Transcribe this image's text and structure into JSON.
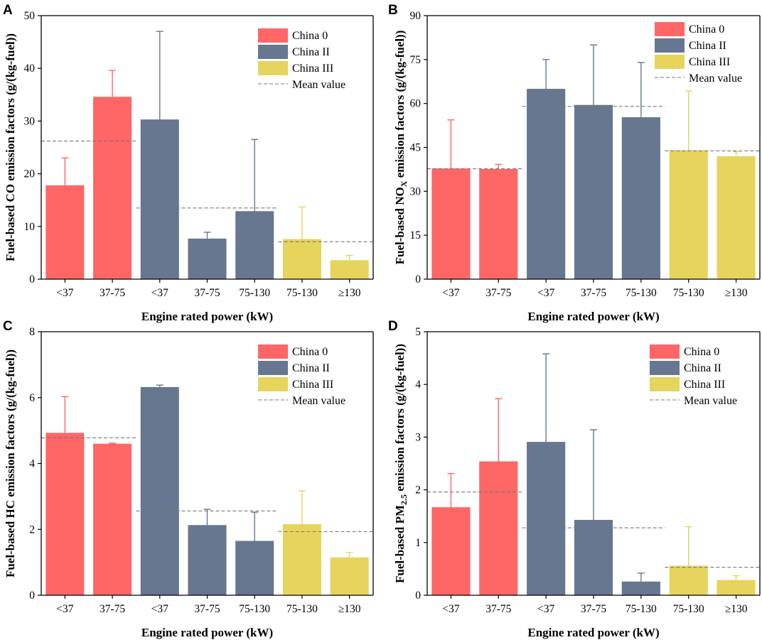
{
  "colors": {
    "china0": "#ff6666",
    "china2": "#66778f",
    "china3": "#e6d45c",
    "mean": "#777777",
    "axis": "#000000",
    "error_china0": "#ff6666",
    "error_china2": "#66778f",
    "error_china3": "#e6d45c"
  },
  "chart_data": [
    {
      "type": "bar",
      "panel": "A",
      "ylabel": "Fuel-based CO emission factors (g/(kg-fuel))",
      "xlabel": "Engine rated power (kW)",
      "ylim": [
        0,
        50
      ],
      "yticks": [
        "0",
        "10",
        "20",
        "30",
        "40",
        "50"
      ],
      "categories": [
        "<37",
        "37-75",
        "<37",
        "37-75",
        "75-130",
        "75-130",
        "≥130"
      ],
      "groups": [
        "China 0",
        "China 0",
        "China II",
        "China II",
        "China II",
        "China III",
        "China III"
      ],
      "values": [
        17.8,
        34.6,
        30.3,
        7.7,
        12.9,
        7.6,
        3.6
      ],
      "errors": [
        23.0,
        39.6,
        47.0,
        8.9,
        26.5,
        13.7,
        4.5
      ],
      "means": [
        {
          "group": "China 0",
          "value": 26.2
        },
        {
          "group": "China II",
          "value": 13.5
        },
        {
          "group": "China III",
          "value": 7.1
        }
      ],
      "legend": [
        "China 0",
        "China II",
        "China III",
        "Mean value"
      ]
    },
    {
      "type": "bar",
      "panel": "B",
      "ylabel": "Fuel-based NO",
      "ylabel_sub": "X",
      "ylabel_rest": " emission factors (g/(kg-fuel))",
      "xlabel": "Engine rated power (kW)",
      "ylim": [
        0,
        90
      ],
      "yticks": [
        "0",
        "15",
        "30",
        "45",
        "60",
        "75",
        "90"
      ],
      "categories": [
        "<37",
        "37-75",
        "<37",
        "37-75",
        "75-130",
        "75-130",
        "≥130"
      ],
      "groups": [
        "China 0",
        "China 0",
        "China II",
        "China II",
        "China II",
        "China III",
        "China III"
      ],
      "values": [
        37.8,
        37.6,
        65.0,
        59.5,
        55.3,
        44.0,
        42.0
      ],
      "errors": [
        54.4,
        39.2,
        75.0,
        80.0,
        74.0,
        64.3,
        43.5
      ],
      "means": [
        {
          "group": "China 0",
          "value": 37.7
        },
        {
          "group": "China II",
          "value": 59.0
        },
        {
          "group": "China III",
          "value": 43.8
        }
      ],
      "legend": [
        "China 0",
        "China II",
        "China III",
        "Mean value"
      ]
    },
    {
      "type": "bar",
      "panel": "C",
      "ylabel": "Fuel-based HC emission factors (g/(kg-fuel))",
      "xlabel": "Engine rated power (kW)",
      "ylim": [
        0,
        8
      ],
      "yticks": [
        "0",
        "2",
        "4",
        "6",
        "8"
      ],
      "categories": [
        "<37",
        "37-75",
        "<37",
        "37-75",
        "75-130",
        "75-130",
        "≥130"
      ],
      "groups": [
        "China 0",
        "China 0",
        "China II",
        "China II",
        "China II",
        "China III",
        "China III"
      ],
      "values": [
        4.93,
        4.6,
        6.32,
        2.13,
        1.65,
        2.16,
        1.15
      ],
      "errors": [
        6.03,
        4.62,
        6.38,
        2.61,
        2.52,
        3.17,
        1.3
      ],
      "means": [
        {
          "group": "China 0",
          "value": 4.78
        },
        {
          "group": "China II",
          "value": 2.56
        },
        {
          "group": "China III",
          "value": 1.93
        }
      ],
      "legend": [
        "China 0",
        "China II",
        "China III",
        "Mean value"
      ]
    },
    {
      "type": "bar",
      "panel": "D",
      "ylabel": "Fuel-based PM",
      "ylabel_sub": "2.5",
      "ylabel_rest": " emission factors (g/(kg-fuel))",
      "xlabel": "Engine rated power (kW)",
      "ylim": [
        0,
        5
      ],
      "yticks": [
        "0",
        "1",
        "2",
        "3",
        "4",
        "5"
      ],
      "categories": [
        "<37",
        "37-75",
        "<37",
        "37-75",
        "75-130",
        "75-130",
        "≥130"
      ],
      "groups": [
        "China 0",
        "China 0",
        "China II",
        "China II",
        "China II",
        "China III",
        "China III"
      ],
      "values": [
        1.67,
        2.54,
        2.91,
        1.43,
        0.26,
        0.56,
        0.29
      ],
      "errors": [
        2.31,
        3.73,
        4.58,
        3.14,
        0.42,
        1.3,
        0.37
      ],
      "means": [
        {
          "group": "China 0",
          "value": 1.96
        },
        {
          "group": "China II",
          "value": 1.28
        },
        {
          "group": "China III",
          "value": 0.53
        }
      ],
      "legend": [
        "China 0",
        "China II",
        "China III",
        "Mean value"
      ]
    }
  ]
}
